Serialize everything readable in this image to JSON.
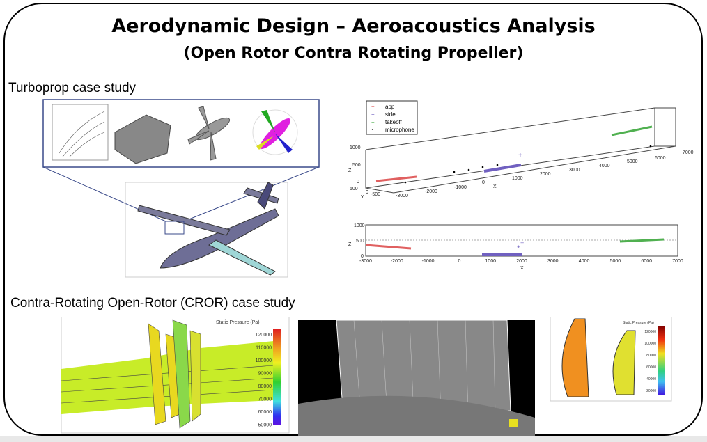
{
  "title": "Aerodynamic Design – Aeroacoustics Analysis",
  "subtitle": "(Open Rotor Contra Rotating Propeller)",
  "sections": {
    "turboprop": "Turboprop case study",
    "cror": "Contra-Rotating Open-Rotor (CROR) case study"
  },
  "plot3d": {
    "legend": [
      {
        "label": "app",
        "color": "#e06060"
      },
      {
        "label": "side",
        "color": "#7060c0"
      },
      {
        "label": "takeoff",
        "color": "#50b050"
      },
      {
        "label": "microphone",
        "color": "#000000"
      }
    ],
    "z_ticks": [
      "1000",
      "500",
      "0"
    ],
    "z_label": "Z",
    "y_ticks": [
      "500",
      "0",
      "-500"
    ],
    "y_label": "Y",
    "x_ticks": [
      "-3000",
      "-2000",
      "-1000",
      "0",
      "1000",
      "2000",
      "3000",
      "4000",
      "5000",
      "6000",
      "7000"
    ],
    "x_label": "X"
  },
  "plot2d": {
    "z_ticks": [
      "1000",
      "500",
      "0"
    ],
    "z_label": "Z",
    "x_ticks": [
      "-3000",
      "-2000",
      "-1000",
      "0",
      "1000",
      "2000",
      "3000",
      "4000",
      "5000",
      "6000",
      "7000"
    ],
    "x_label": "X"
  },
  "cfd1": {
    "legend_title": "Static Pressure (Pa)",
    "ticks": [
      "120000",
      "110000",
      "100000",
      "90000",
      "80000",
      "70000",
      "60000",
      "50000"
    ]
  },
  "cfd2": {
    "legend_title": "Static Pressure (Pa)",
    "ticks": [
      "120000",
      "100000",
      "80000",
      "60000",
      "40000",
      "20000"
    ]
  }
}
